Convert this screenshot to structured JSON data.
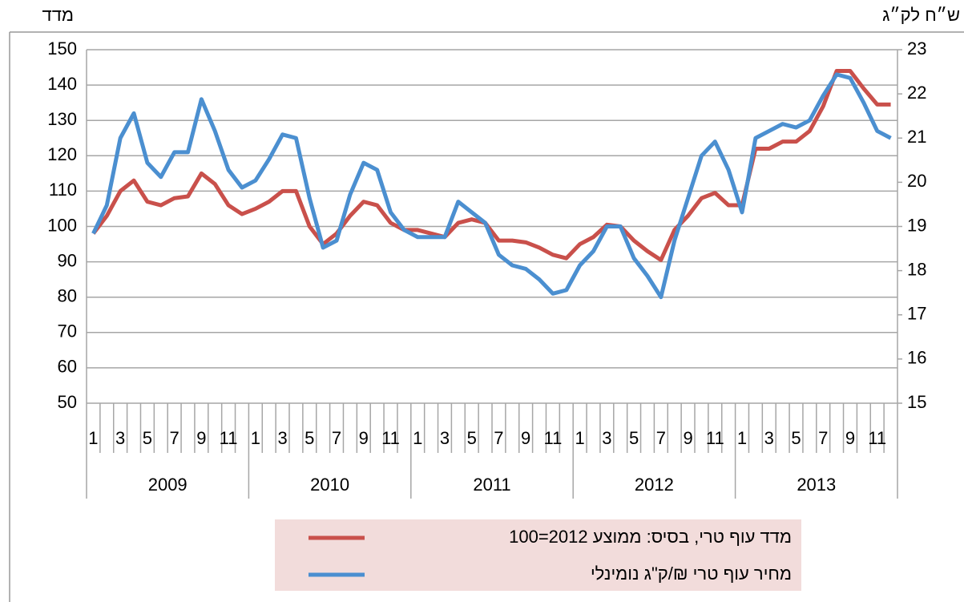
{
  "chart_data": {
    "type": "line",
    "y_label": "מדד",
    "y2_label": "ש״ח לק״ג",
    "categories": [
      "1",
      null,
      "3",
      null,
      "5",
      null,
      "7",
      null,
      "9",
      null,
      "11",
      null,
      "1",
      null,
      "3",
      null,
      "5",
      null,
      "7",
      null,
      "9",
      null,
      "11",
      null,
      "1",
      null,
      "3",
      null,
      "5",
      null,
      "7",
      null,
      "9",
      null,
      "11",
      null,
      "1",
      null,
      "3",
      null,
      "5",
      null,
      "7",
      null,
      "9",
      null,
      "11",
      null,
      "1",
      null,
      "3",
      null,
      "5",
      null,
      "7",
      null,
      "9",
      null,
      "11",
      null
    ],
    "years": [
      "2009",
      "2010",
      "2011",
      "2012",
      "2013"
    ],
    "series": [
      {
        "name": "מדד עוף טרי, בסיס: ממוצע 2012=100",
        "color": "#c9504b",
        "axis": "y",
        "values": [
          98,
          103,
          110,
          113,
          107,
          106,
          108,
          108.5,
          115,
          112,
          106,
          103.5,
          105,
          107,
          110,
          110,
          100,
          95,
          98,
          103,
          107,
          106,
          101,
          99,
          99,
          98,
          97,
          101,
          102,
          101,
          96,
          96,
          95.5,
          94,
          92,
          91,
          95,
          97,
          100.5,
          100,
          96,
          93,
          90.5,
          99,
          103,
          108,
          109.5,
          106,
          106,
          122,
          122,
          124,
          124,
          127,
          134,
          144,
          144,
          139,
          134.5,
          134.5
        ]
      },
      {
        "name": "מחיר עוף טרי ₪/ק\"ג נומינלי",
        "color": "#4b8fd0",
        "axis": "y2",
        "values": [
          18.84,
          19.48,
          21.0,
          21.56,
          20.44,
          20.12,
          20.68,
          20.68,
          21.88,
          21.16,
          20.28,
          19.88,
          20.04,
          20.52,
          21.08,
          21.0,
          19.64,
          18.52,
          18.68,
          19.72,
          20.44,
          20.28,
          19.32,
          18.92,
          18.76,
          18.76,
          18.76,
          19.56,
          19.32,
          19.08,
          18.36,
          18.12,
          18.04,
          17.8,
          17.48,
          17.56,
          18.12,
          18.44,
          19.0,
          19.0,
          18.28,
          17.88,
          17.4,
          18.68,
          19.64,
          20.6,
          20.92,
          20.28,
          19.32,
          21.0,
          21.16,
          21.32,
          21.24,
          21.4,
          21.96,
          22.44,
          22.36,
          21.8,
          21.16,
          21.0
        ]
      }
    ],
    "ylim": [
      50,
      150
    ],
    "yticks": [
      50,
      60,
      70,
      80,
      90,
      100,
      110,
      120,
      130,
      140,
      150
    ],
    "y2lim": [
      15,
      23
    ],
    "y2ticks": [
      15,
      16,
      17,
      18,
      19,
      20,
      21,
      22,
      23
    ],
    "grid": true
  }
}
